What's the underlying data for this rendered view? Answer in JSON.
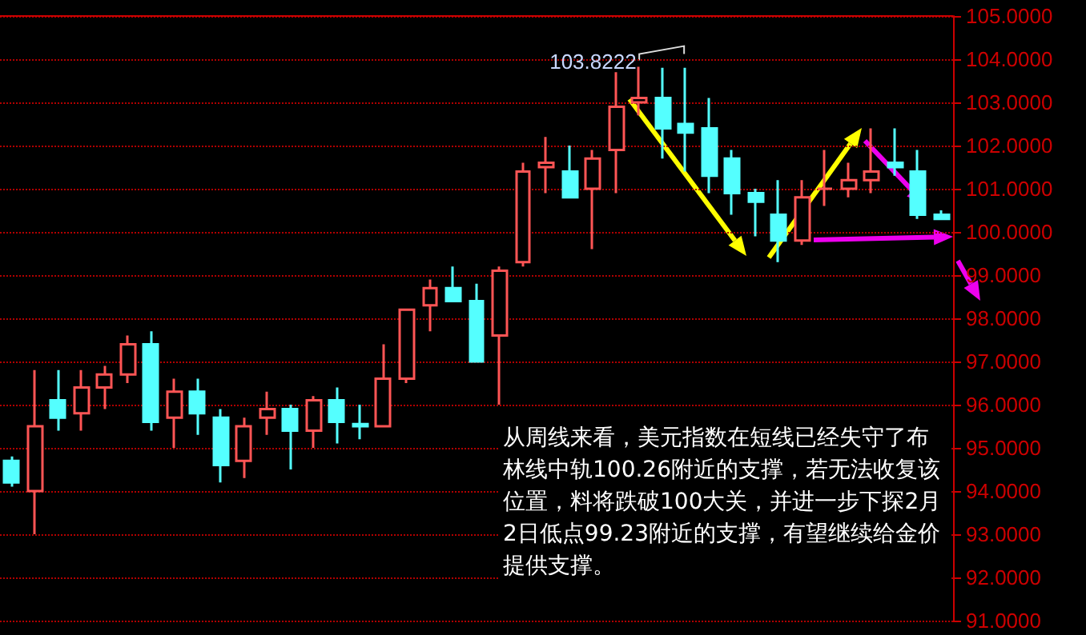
{
  "chart_data": {
    "type": "candlestick",
    "categories": [
      null,
      null,
      null,
      null,
      null,
      null,
      null,
      null,
      null,
      null,
      null,
      null,
      null,
      null,
      null,
      null,
      null,
      null,
      null,
      null,
      null,
      null,
      null,
      null,
      null,
      null,
      null,
      null,
      null,
      null,
      null,
      null,
      null,
      null,
      null,
      null,
      null,
      null,
      null,
      null,
      null
    ],
    "ohlc": [
      [
        94.7,
        94.8,
        94.1,
        94.2
      ],
      [
        94.0,
        96.8,
        93.0,
        95.5
      ],
      [
        96.1,
        96.8,
        95.4,
        95.7
      ],
      [
        95.8,
        96.8,
        95.4,
        96.4
      ],
      [
        96.4,
        96.9,
        95.9,
        96.7
      ],
      [
        96.7,
        97.6,
        96.5,
        97.4
      ],
      [
        97.4,
        97.7,
        95.4,
        95.6
      ],
      [
        95.7,
        96.6,
        95.0,
        96.3
      ],
      [
        96.3,
        96.6,
        95.3,
        95.8
      ],
      [
        95.7,
        95.9,
        94.2,
        94.6
      ],
      [
        94.7,
        95.7,
        94.3,
        95.5
      ],
      [
        95.7,
        96.3,
        95.3,
        95.9
      ],
      [
        95.9,
        96.0,
        94.5,
        95.4
      ],
      [
        95.4,
        96.2,
        95.0,
        96.1
      ],
      [
        96.1,
        96.4,
        95.1,
        95.6
      ],
      [
        95.55,
        96.0,
        95.2,
        95.5
      ],
      [
        95.5,
        97.4,
        95.5,
        96.6
      ],
      [
        96.6,
        98.2,
        96.5,
        98.2
      ],
      [
        98.3,
        98.9,
        97.7,
        98.7
      ],
      [
        98.7,
        99.2,
        98.4,
        98.4
      ],
      [
        98.4,
        98.8,
        97.0,
        97.0
      ],
      [
        97.6,
        99.2,
        96.0,
        99.1
      ],
      [
        99.3,
        101.6,
        99.2,
        101.4
      ],
      [
        101.5,
        102.2,
        100.9,
        101.6
      ],
      [
        101.4,
        102.0,
        100.8,
        100.8
      ],
      [
        101.0,
        101.9,
        99.6,
        101.7
      ],
      [
        101.9,
        103.7,
        100.9,
        102.9
      ],
      [
        103.0,
        103.8222,
        102.7,
        103.1
      ],
      [
        103.1,
        103.8,
        101.7,
        102.4
      ],
      [
        102.5,
        103.8,
        101.4,
        102.3
      ],
      [
        102.4,
        103.1,
        100.9,
        101.3
      ],
      [
        101.7,
        101.9,
        100.4,
        100.9
      ],
      [
        100.9,
        101.0,
        99.9,
        100.7
      ],
      [
        100.4,
        101.2,
        99.3,
        99.8
      ],
      [
        99.8,
        101.2,
        99.7,
        100.8
      ],
      [
        101.0,
        101.9,
        100.6,
        101.0
      ],
      [
        101.0,
        101.6,
        100.8,
        101.2
      ],
      [
        101.2,
        102.4,
        100.9,
        101.4
      ],
      [
        101.6,
        102.4,
        101.3,
        101.5
      ],
      [
        101.4,
        101.9,
        100.3,
        100.4
      ],
      [
        100.4,
        100.5,
        100.3,
        100.3
      ]
    ],
    "ylim": [
      91,
      105
    ],
    "yticks": [
      {
        "value": 91,
        "label": "91.0000"
      },
      {
        "value": 92,
        "label": "92.0000"
      },
      {
        "value": 93,
        "label": "93.0000"
      },
      {
        "value": 94,
        "label": "94.0000"
      },
      {
        "value": 95,
        "label": "95.0000"
      },
      {
        "value": 96,
        "label": "96.0000"
      },
      {
        "value": 97,
        "label": "97.0000"
      },
      {
        "value": 98,
        "label": "98.0000"
      },
      {
        "value": 99,
        "label": "99.0000"
      },
      {
        "value": 100,
        "label": "100.0000"
      },
      {
        "value": 101,
        "label": "101.0000"
      },
      {
        "value": 102,
        "label": "102.0000"
      },
      {
        "value": 103,
        "label": "103.0000"
      },
      {
        "value": 104,
        "label": "104.0000"
      },
      {
        "value": 105,
        "label": "105.0000"
      }
    ],
    "tick_labels": "y",
    "grid": "y",
    "annotations": [
      "103.8222",
      "从周线来看，美元指数在短线已经失守了布林线中轨100.26附近的支撑，若无法收复该位置，料将跌破100大关，并进一步下探2月2日低点99.23附近的支撑，有望继续给金价提供支撑。"
    ]
  }
}
